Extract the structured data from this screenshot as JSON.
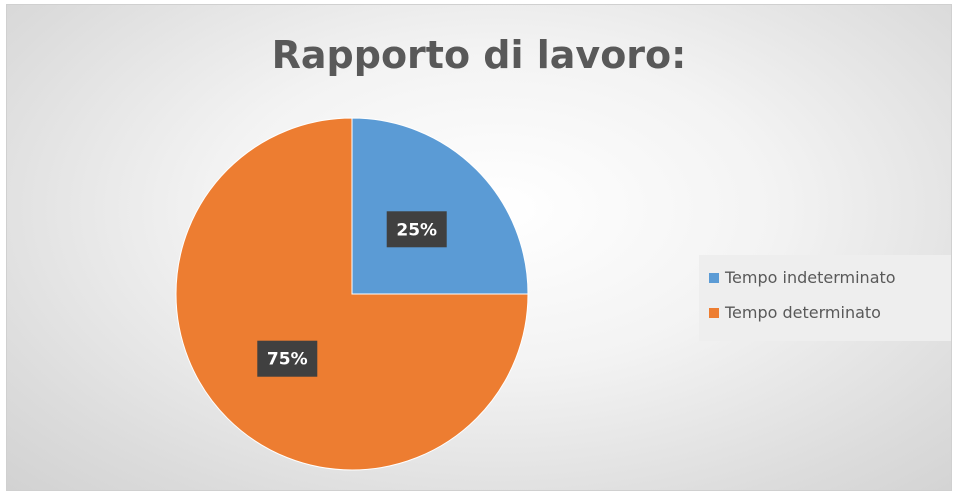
{
  "chart_data": {
    "type": "pie",
    "title": "Rapporto di lavoro:",
    "slices": [
      {
        "label": "Tempo indeterminato",
        "value": 25,
        "display": "25%",
        "color": "#5b9bd5"
      },
      {
        "label": "Tempo determinato",
        "value": 75,
        "display": "75%",
        "color": "#ed7d31"
      }
    ],
    "start_angle": "12 o'clock",
    "direction": "clockwise",
    "data_labels": "inside, white on dark box",
    "legend_position": "right"
  }
}
